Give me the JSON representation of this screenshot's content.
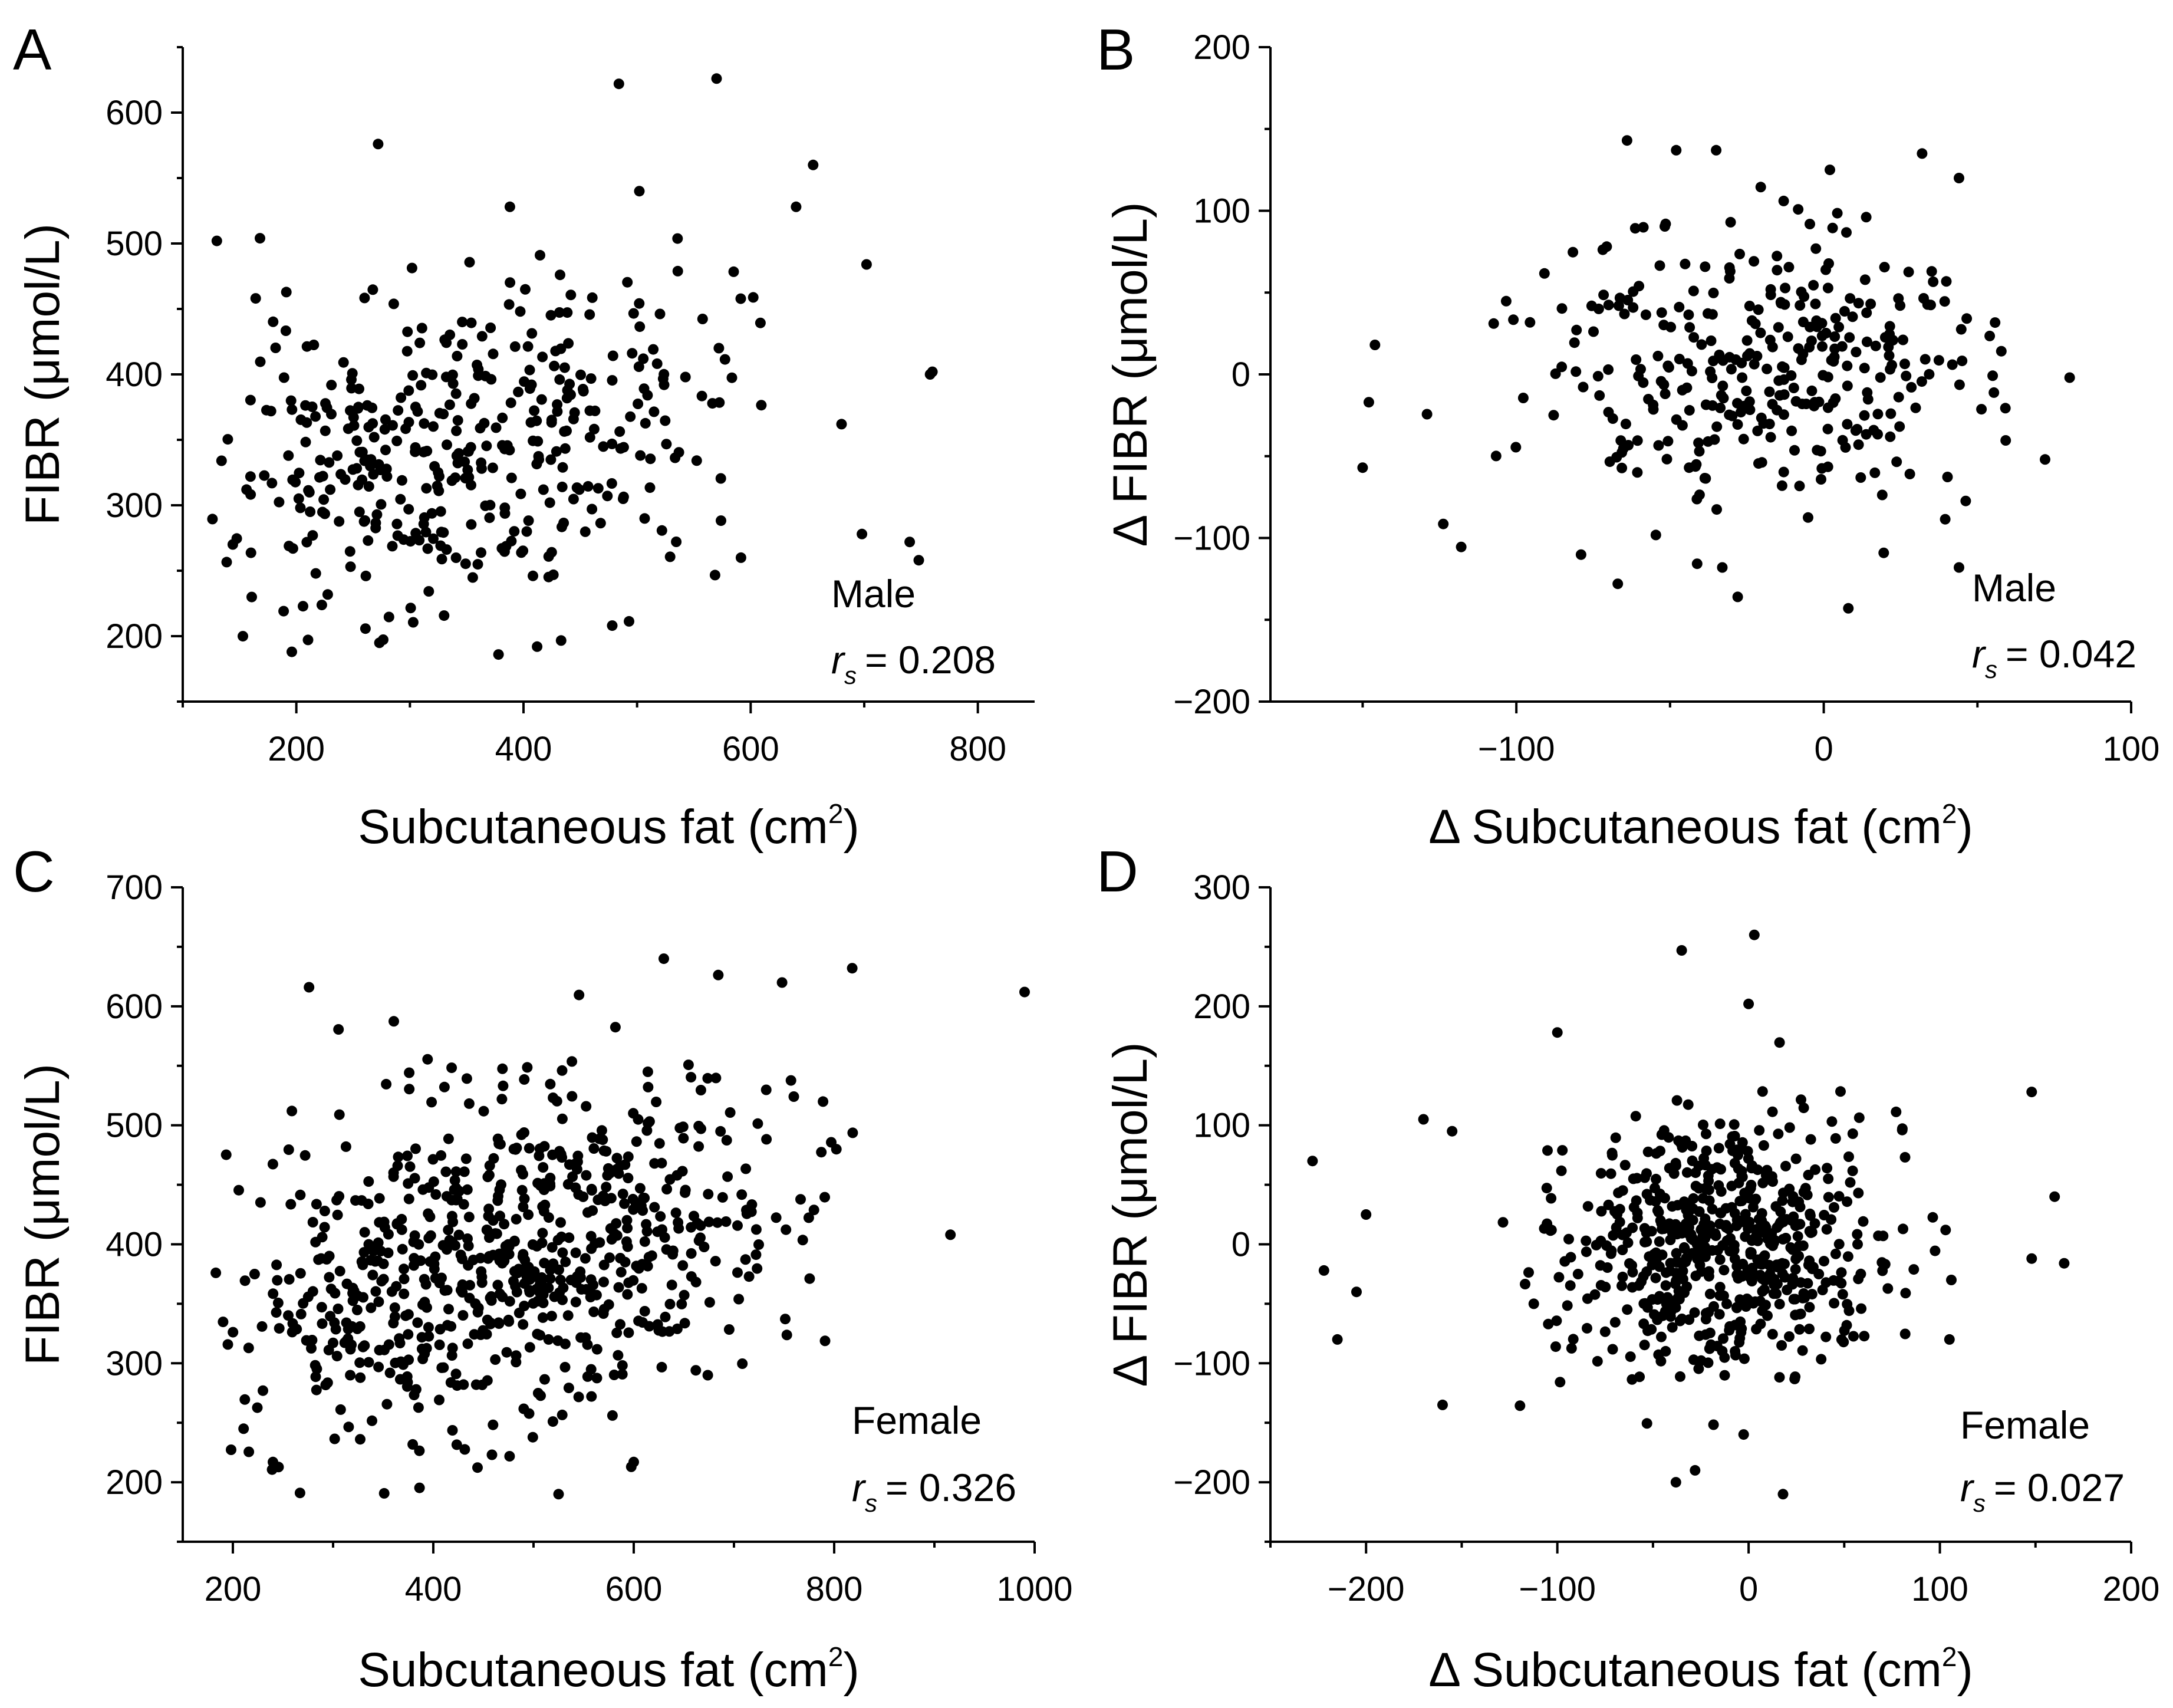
{
  "chart_data": [
    {
      "type": "scatter",
      "panel_label": "A",
      "group_label": "Male",
      "stat": {
        "symbol": "r",
        "subscript": "s",
        "value_text": "= 0.208"
      },
      "xlabel_main": "Subcutaneous fat (cm",
      "xlabel_sup": "2",
      "xlabel_end": ")",
      "ylabel": "FIBR (μmol/L)",
      "xlim": [
        100,
        850
      ],
      "ylim": [
        150,
        650
      ],
      "xticks": [
        200,
        400,
        600,
        800
      ],
      "yticks": [
        200,
        300,
        400,
        500,
        600
      ],
      "x_minor": 100,
      "y_minor": 50,
      "point_count": 400,
      "seed": 11,
      "cluster": {
        "mx": 340,
        "sx": 115,
        "my": 345,
        "sy": 65,
        "r": 0.28,
        "xmin": 120,
        "xmax": 620,
        "ymin": 185,
        "ymax": 520
      },
      "outliers": [
        [
          130,
          502
        ],
        [
          168,
          504
        ],
        [
          272,
          576
        ],
        [
          484,
          622
        ],
        [
          502,
          540
        ],
        [
          570,
          626
        ],
        [
          388,
          528
        ],
        [
          640,
          528
        ],
        [
          655,
          560
        ],
        [
          702,
          484
        ],
        [
          758,
          400
        ],
        [
          760,
          402
        ],
        [
          680,
          362
        ],
        [
          698,
          278
        ],
        [
          740,
          272
        ],
        [
          748,
          258
        ],
        [
          196,
          188
        ],
        [
          378,
          186
        ],
        [
          412,
          192
        ]
      ]
    },
    {
      "type": "scatter",
      "panel_label": "B",
      "group_label": "Male",
      "stat": {
        "symbol": "r",
        "subscript": "s",
        "value_text": "= 0.042"
      },
      "xlabel_main": "Δ Subcutaneous fat (cm",
      "xlabel_sup": "2",
      "xlabel_end": ")",
      "ylabel": "Δ FIBR (μmol/L)",
      "xlim": [
        -180,
        100
      ],
      "ylim": [
        -200,
        200
      ],
      "xticks": [
        -100,
        0,
        100
      ],
      "yticks": [
        -200,
        -100,
        0,
        100,
        200
      ],
      "x_minor": 50,
      "y_minor": 50,
      "point_count": 330,
      "seed": 23,
      "cluster": {
        "mx": -20,
        "sx": 38,
        "my": 0,
        "sy": 45,
        "r": 0.04,
        "xmin": -150,
        "xmax": 60,
        "ymin": -145,
        "ymax": 140
      },
      "outliers": [
        [
          -150,
          -57
        ],
        [
          -148,
          -17
        ],
        [
          -146,
          18
        ],
        [
          -64,
          143
        ],
        [
          -48,
          137
        ],
        [
          -35,
          137
        ],
        [
          2,
          125
        ],
        [
          32,
          135
        ],
        [
          44,
          120
        ],
        [
          80,
          -2
        ],
        [
          72,
          -52
        ],
        [
          44,
          -118
        ],
        [
          -33,
          -118
        ],
        [
          -28,
          -136
        ],
        [
          -67,
          -128
        ],
        [
          8,
          -143
        ]
      ]
    },
    {
      "type": "scatter",
      "panel_label": "C",
      "group_label": "Female",
      "stat": {
        "symbol": "r",
        "subscript": "s",
        "value_text": "= 0.326"
      },
      "xlabel_main": "Subcutaneous fat (cm",
      "xlabel_sup": "2",
      "xlabel_end": ")",
      "ylabel": "FIBR (μmol/L)",
      "xlim": [
        150,
        1000
      ],
      "ylim": [
        150,
        700
      ],
      "xticks": [
        200,
        400,
        600,
        800,
        1000
      ],
      "yticks": [
        200,
        300,
        400,
        500,
        600,
        700
      ],
      "x_minor": 100,
      "y_minor": 50,
      "point_count": 720,
      "seed": 37,
      "cluster": {
        "mx": 470,
        "sx": 140,
        "my": 390,
        "sy": 75,
        "r": 0.33,
        "xmin": 185,
        "xmax": 850,
        "ymin": 190,
        "ymax": 640
      },
      "outliers": [
        [
          183,
          376
        ],
        [
          276,
          616
        ],
        [
          916,
          408
        ],
        [
          990,
          612
        ],
        [
          630,
          640
        ],
        [
          748,
          620
        ],
        [
          818,
          632
        ],
        [
          525,
          190
        ],
        [
          600,
          217
        ],
        [
          240,
          217
        ]
      ]
    },
    {
      "type": "scatter",
      "panel_label": "D",
      "group_label": "Female",
      "stat": {
        "symbol": "r",
        "subscript": "s",
        "value_text": "= 0.027"
      },
      "xlabel_main": "Δ Subcutaneous fat (cm",
      "xlabel_sup": "2",
      "xlabel_end": ")",
      "ylabel": "Δ FIBR (μmol/L)",
      "xlim": [
        -250,
        200
      ],
      "ylim": [
        -250,
        300
      ],
      "xticks": [
        -200,
        -100,
        0,
        100,
        200
      ],
      "yticks": [
        -200,
        -100,
        0,
        100,
        200,
        300
      ],
      "x_minor": 50,
      "y_minor": 50,
      "point_count": 600,
      "seed": 53,
      "cluster": {
        "mx": -15,
        "sx": 42,
        "my": 0,
        "sy": 52,
        "r": 0.03,
        "xmin": -130,
        "xmax": 100,
        "ymin": -170,
        "ymax": 180
      },
      "outliers": [
        [
          -228,
          70
        ],
        [
          -222,
          -22
        ],
        [
          -215,
          -80
        ],
        [
          -205,
          -40
        ],
        [
          -200,
          25
        ],
        [
          -170,
          105
        ],
        [
          -160,
          -135
        ],
        [
          -155,
          95
        ],
        [
          -100,
          178
        ],
        [
          -35,
          247
        ],
        [
          3,
          260
        ],
        [
          0,
          202
        ],
        [
          -38,
          -200
        ],
        [
          -28,
          -190
        ],
        [
          18,
          -210
        ],
        [
          148,
          128
        ],
        [
          160,
          40
        ],
        [
          165,
          -16
        ],
        [
          148,
          -12
        ],
        [
          105,
          -80
        ],
        [
          103,
          12
        ],
        [
          106,
          -30
        ]
      ]
    }
  ]
}
